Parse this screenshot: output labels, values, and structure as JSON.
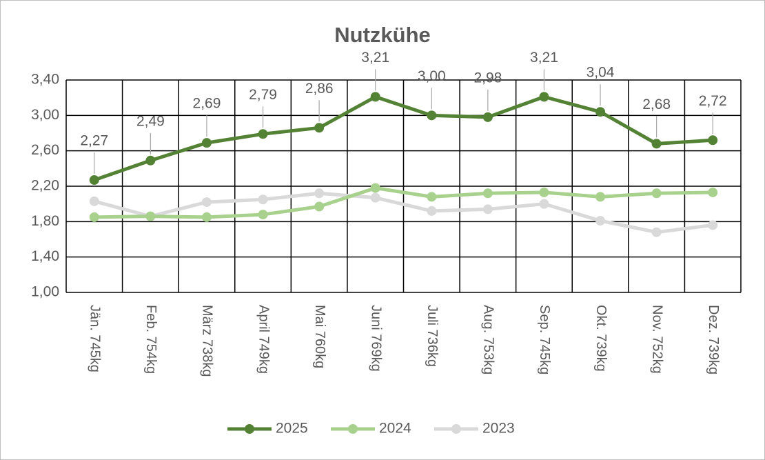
{
  "chart_data": {
    "type": "line",
    "title": "Nutzkühe",
    "categories": [
      "Jän. 745kg",
      "Feb. 754kg",
      "März 738kg",
      "April 749kg",
      "Mai 760kg",
      "Juni 769kg",
      "Juli 736kg",
      "Aug. 753kg",
      "Sep. 745kg",
      "Okt. 739kg",
      "Nov. 752kg",
      "Dez. 739kg"
    ],
    "series": [
      {
        "name": "2025",
        "color": "#548235",
        "values": [
          2.27,
          2.49,
          2.69,
          2.79,
          2.86,
          3.21,
          3.0,
          2.98,
          3.21,
          3.04,
          2.68,
          2.72
        ],
        "value_labels": [
          "2,27",
          "2,49",
          "2,69",
          "2,79",
          "2,86",
          "3,21",
          "3,00",
          "2,98",
          "3,21",
          "3,04",
          "2,68",
          "2,72"
        ]
      },
      {
        "name": "2024",
        "color": "#a9d18e",
        "values": [
          1.85,
          1.86,
          1.85,
          1.88,
          1.97,
          2.18,
          2.08,
          2.12,
          2.13,
          2.08,
          2.12,
          2.13
        ]
      },
      {
        "name": "2023",
        "color": "#d9d9d9",
        "values": [
          2.03,
          1.86,
          2.02,
          2.05,
          2.12,
          2.07,
          1.92,
          1.94,
          2.0,
          1.81,
          1.68,
          1.76
        ]
      }
    ],
    "ylim": [
      1.0,
      3.4
    ],
    "yticks": [
      {
        "value": 1.0,
        "label": "1,00"
      },
      {
        "value": 1.4,
        "label": "1,40"
      },
      {
        "value": 1.8,
        "label": "1,80"
      },
      {
        "value": 2.2,
        "label": "2,20"
      },
      {
        "value": 2.6,
        "label": "2,60"
      },
      {
        "value": 3.0,
        "label": "3,00"
      },
      {
        "value": 3.4,
        "label": "3,40"
      }
    ],
    "grid": true,
    "legend": "bottom"
  }
}
